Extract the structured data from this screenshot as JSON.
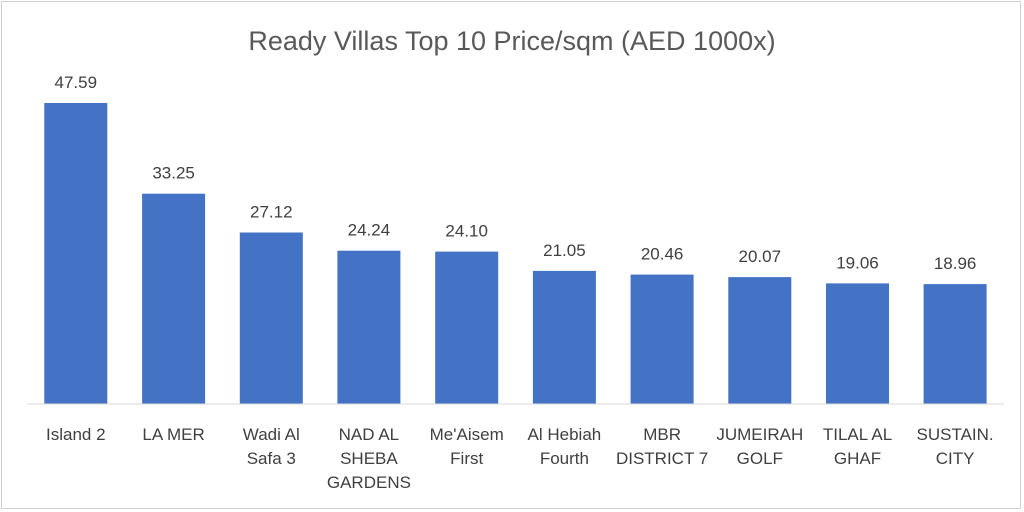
{
  "chart_data": {
    "type": "bar",
    "title": "Ready Villas Top 10 Price/sqm (AED 1000x)",
    "xlabel": "",
    "ylabel": "",
    "categories": [
      [
        "Island 2"
      ],
      [
        "LA MER"
      ],
      [
        "Wadi Al",
        "Safa 3"
      ],
      [
        "NAD AL",
        "SHEBA",
        "GARDENS"
      ],
      [
        "Me'Aisem",
        "First"
      ],
      [
        "Al Hebiah",
        "Fourth"
      ],
      [
        "MBR",
        "DISTRICT 7"
      ],
      [
        "JUMEIRAH",
        "GOLF"
      ],
      [
        "TILAL AL",
        "GHAF"
      ],
      [
        "SUSTAIN.",
        "CITY"
      ]
    ],
    "values": [
      47.59,
      33.25,
      27.12,
      24.24,
      24.1,
      21.05,
      20.46,
      20.07,
      19.06,
      18.96
    ],
    "value_labels": [
      "47.59",
      "33.25",
      "27.12",
      "24.24",
      "24.10",
      "21.05",
      "20.46",
      "20.07",
      "19.06",
      "18.96"
    ],
    "ylim": [
      0,
      47.59
    ],
    "grid": false,
    "legend": "none",
    "bar_color": "#4472C4",
    "axis_color": "#d9d9d9"
  }
}
